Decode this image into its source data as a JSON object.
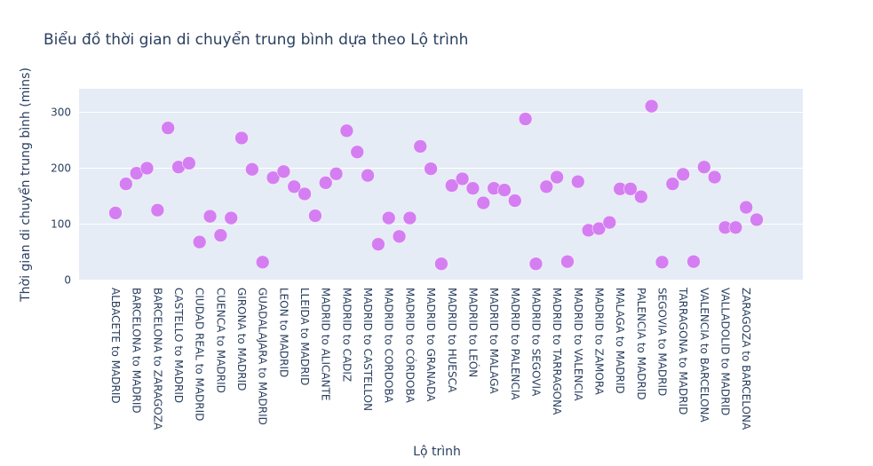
{
  "chart_data": {
    "type": "scatter",
    "title": "Biểu đồ thời gian di chuyển trung bình dựa theo Lộ trình",
    "xlabel": "Lộ trình",
    "ylabel": "Thời gian di chuyển trung bình (mins)",
    "ylim": [
      -5,
      340
    ],
    "yticks": [
      0,
      100,
      200,
      300
    ],
    "grid": true,
    "marker_color": "#d57ef2",
    "plot_bg": "#e5ecf6",
    "ticktext": [
      "ALBACETE to MADRID",
      "BARCELONA to MADRID",
      "BARCELONA to ZARAGOZA",
      "CASTELLO to MADRID",
      "CIUDAD REAL to MADRID",
      "CUENCA to MADRID",
      "GIRONA to MADRID",
      "GUADALAJARA to MADRID",
      "LEON to MADRID",
      "LLEIDA to MADRID",
      "MADRID to ALICANTE",
      "MADRID to CADIZ",
      "MADRID to CASTELLON",
      "MADRID to CORDOBA",
      "MADRID to CÓRDOBA",
      "MADRID to GRANADA",
      "MADRID to HUESCA",
      "MADRID to LEÓN",
      "MADRID to MALAGA",
      "MADRID to PALENCIA",
      "MADRID to SEGOVIA",
      "MADRID to TARRAGONA",
      "MADRID to VALENCIA",
      "MADRID to ZAMORA",
      "MALAGA to MADRID",
      "PALENCIA to MADRID",
      "SEGOVIA to MADRID",
      "TARRAGONA to MADRID",
      "VALENCIA to BARCELONA",
      "VALLADOLID to MADRID",
      "ZARAGOZA to BARCELONA"
    ],
    "values": [
      120,
      172,
      191,
      200,
      125,
      272,
      202,
      209,
      68,
      114,
      80,
      111,
      254,
      198,
      32,
      183,
      194,
      167,
      154,
      115,
      174,
      190,
      267,
      229,
      187,
      64,
      111,
      78,
      111,
      239,
      199,
      29,
      169,
      181,
      164,
      138,
      164,
      161,
      142,
      288,
      29,
      167,
      184,
      33,
      176,
      89,
      92,
      103,
      163,
      163,
      149,
      311,
      32,
      172,
      189,
      33,
      202,
      184,
      94,
      94,
      130,
      108
    ]
  }
}
